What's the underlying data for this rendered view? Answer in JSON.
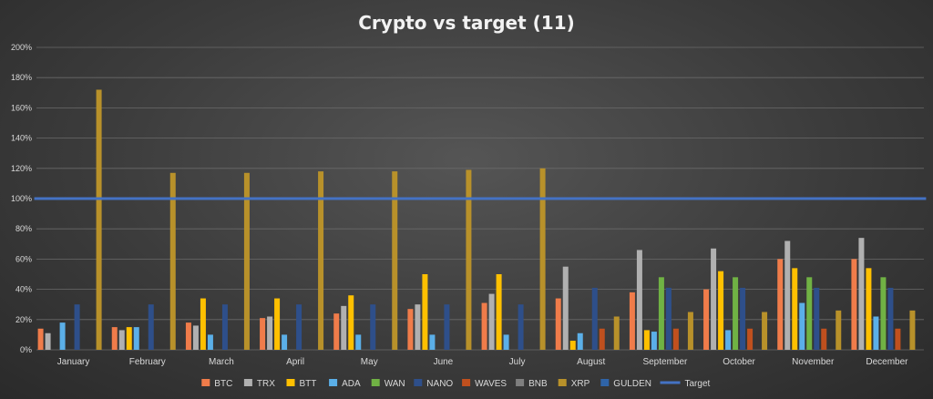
{
  "chart_data": {
    "type": "bar",
    "title": "Crypto vs target (11)",
    "xlabel": "",
    "ylabel": "",
    "ylim": [
      0,
      200
    ],
    "yticks": [
      0,
      20,
      40,
      60,
      80,
      100,
      120,
      140,
      160,
      180,
      200
    ],
    "tick_suffix": "%",
    "grid": true,
    "legend_position": "bottom",
    "categories": [
      "January",
      "February",
      "March",
      "April",
      "May",
      "June",
      "July",
      "August",
      "September",
      "October",
      "November",
      "December"
    ],
    "series": [
      {
        "name": "BTC",
        "color": "#f07c4a",
        "values": [
          14,
          15,
          18,
          21,
          24,
          27,
          31,
          34,
          38,
          40,
          60,
          60
        ]
      },
      {
        "name": "TRX",
        "color": "#b0b0b0",
        "values": [
          11,
          13,
          16,
          22,
          29,
          30,
          37,
          55,
          66,
          67,
          72,
          74
        ]
      },
      {
        "name": "BTT",
        "color": "#ffc000",
        "values": [
          0,
          15,
          34,
          34,
          36,
          50,
          50,
          6,
          13,
          52,
          54,
          54
        ]
      },
      {
        "name": "ADA",
        "color": "#5bafe8",
        "values": [
          18,
          15,
          10,
          10,
          10,
          10,
          10,
          11,
          12,
          13,
          31,
          22
        ]
      },
      {
        "name": "WAN",
        "color": "#70b244",
        "values": [
          0,
          0,
          0,
          0,
          0,
          0,
          0,
          0,
          48,
          48,
          48,
          48
        ]
      },
      {
        "name": "NANO",
        "color": "#2e4f8a",
        "values": [
          30,
          30,
          30,
          30,
          30,
          30,
          30,
          41,
          41,
          41,
          41,
          41
        ]
      },
      {
        "name": "WAVES",
        "color": "#c0501e",
        "values": [
          0,
          0,
          0,
          0,
          0,
          0,
          0,
          14,
          14,
          14,
          14,
          14
        ]
      },
      {
        "name": "BNB",
        "color": "#7f7f7f",
        "values": [
          0,
          0,
          0,
          0,
          0,
          0,
          0,
          0,
          0,
          0,
          0,
          0
        ]
      },
      {
        "name": "XRP",
        "color": "#b8912a",
        "values": [
          172,
          117,
          117,
          118,
          118,
          119,
          120,
          22,
          25,
          25,
          26,
          26
        ]
      },
      {
        "name": "GULDEN",
        "color": "#2f64a8",
        "values": [
          0,
          0,
          0,
          0,
          0,
          0,
          0,
          0,
          0,
          0,
          0,
          0
        ]
      }
    ],
    "target": {
      "name": "Target",
      "color": "#4472c4",
      "value": 100
    }
  }
}
